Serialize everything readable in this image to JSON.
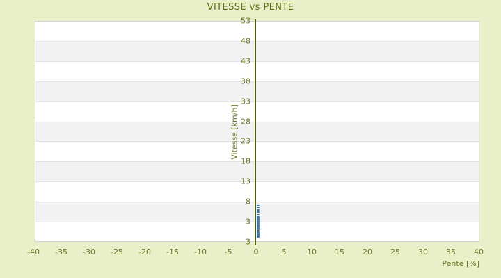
{
  "page": {
    "title": "VITESSE vs PENTE"
  },
  "chart_data": {
    "type": "scatter",
    "title": "VITESSE vs PENTE",
    "xlabel": "Pente [%]",
    "ylabel": "Vitesse [km/h]",
    "xlim": [
      -40,
      40
    ],
    "x_tick_values": [
      -40,
      -35,
      -30,
      -25,
      -20,
      -15,
      -10,
      -5,
      0,
      5,
      10,
      15,
      20,
      25,
      30,
      35,
      40
    ],
    "y_tick_labels_top_to_bottom": [
      "53",
      "48",
      "43",
      "38",
      "33",
      "28",
      "23",
      "18",
      "13",
      "8",
      "3",
      "3"
    ],
    "y_gridline_values": [
      53,
      48,
      43,
      38,
      33,
      28,
      23,
      18,
      13,
      8,
      3
    ],
    "grid": "alternating-horizontal-bands",
    "legend": "none",
    "marker": "short-horizontal-dash",
    "colors": {
      "background": "#e9efc9",
      "plot_background": "#ffffff",
      "band_gray": "#f2f2f2",
      "gridline": "#e2e2e2",
      "plot_border": "#d5d5d5",
      "text_olive": "#6e7524",
      "title_olive": "#5e6e10",
      "zero_axis_line": "#4a5c07",
      "point_blue": "#3b7ab3"
    },
    "points": [
      [
        0,
        7.0
      ],
      [
        0,
        6.5
      ],
      [
        0,
        6.0
      ],
      [
        0,
        5.4
      ],
      [
        0,
        4.8
      ],
      [
        0,
        4.3
      ],
      [
        0,
        4.0
      ],
      [
        0,
        3.7
      ],
      [
        0,
        3.5
      ],
      [
        0,
        3.2
      ],
      [
        0,
        3.0
      ],
      [
        0,
        2.7
      ],
      [
        0,
        2.5
      ],
      [
        0,
        2.2
      ],
      [
        0,
        2.0
      ],
      [
        0,
        1.8
      ],
      [
        0,
        1.5
      ],
      [
        0,
        1.2
      ],
      [
        0,
        1.0
      ],
      [
        0,
        0.4
      ],
      [
        0,
        0.2
      ],
      [
        0,
        -0.1
      ],
      [
        0,
        -0.3
      ],
      [
        0,
        -0.6
      ],
      [
        0,
        -0.8
      ]
    ]
  }
}
